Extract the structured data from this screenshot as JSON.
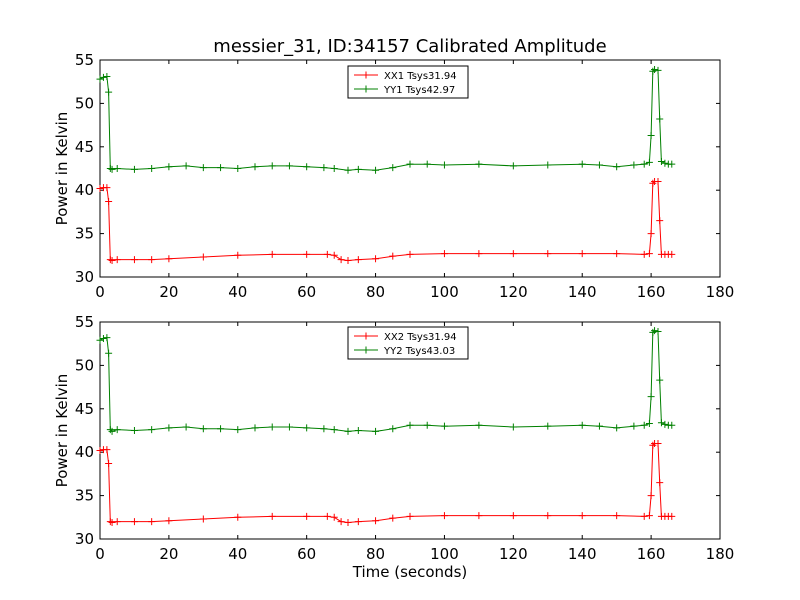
{
  "chart_data": [
    {
      "type": "line",
      "title": "messier_31, ID:34157 Calibrated Amplitude",
      "xlabel": "",
      "ylabel": "Power in Kelvin",
      "xlim": [
        0,
        180
      ],
      "ylim": [
        30,
        55
      ],
      "xticks": [
        "0",
        "20",
        "40",
        "60",
        "80",
        "100",
        "120",
        "140",
        "160",
        "180"
      ],
      "yticks": [
        "30",
        "35",
        "40",
        "45",
        "50",
        "55"
      ],
      "legend_position": "top-center",
      "series": [
        {
          "name": "XX1 Tsys31.94",
          "color": "#ff0000",
          "x": [
            0,
            1,
            2,
            2.5,
            3,
            3.5,
            5,
            10,
            15,
            20,
            30,
            40,
            50,
            60,
            66,
            68,
            70,
            72,
            75,
            80,
            85,
            90,
            100,
            110,
            120,
            130,
            140,
            150,
            158,
            159.5,
            160,
            160.5,
            161,
            162,
            162.5,
            163,
            164,
            165,
            166
          ],
          "y": [
            40.2,
            40.3,
            40.3,
            38.7,
            32.0,
            31.9,
            32.0,
            32.0,
            32.0,
            32.1,
            32.3,
            32.5,
            32.6,
            32.6,
            32.6,
            32.5,
            32.0,
            31.9,
            32.0,
            32.1,
            32.4,
            32.6,
            32.7,
            32.7,
            32.7,
            32.7,
            32.7,
            32.7,
            32.6,
            32.7,
            35.0,
            40.8,
            41.0,
            41.0,
            36.5,
            32.6,
            32.6,
            32.6,
            32.6
          ]
        },
        {
          "name": "YY1 Tsys42.97",
          "color": "#008000",
          "x": [
            0,
            1,
            2,
            2.5,
            3,
            3.5,
            5,
            10,
            15,
            20,
            25,
            30,
            35,
            40,
            45,
            50,
            55,
            60,
            65,
            68,
            72,
            75,
            80,
            85,
            90,
            95,
            100,
            110,
            120,
            130,
            140,
            145,
            150,
            155,
            158,
            159.5,
            160,
            160.5,
            161,
            162,
            162.5,
            163,
            164,
            165,
            166
          ],
          "y": [
            52.8,
            53.0,
            53.1,
            51.3,
            42.5,
            42.4,
            42.5,
            42.4,
            42.5,
            42.7,
            42.8,
            42.6,
            42.6,
            42.5,
            42.7,
            42.8,
            42.8,
            42.7,
            42.6,
            42.5,
            42.3,
            42.4,
            42.3,
            42.6,
            43.0,
            43.0,
            42.9,
            43.0,
            42.8,
            42.9,
            43.0,
            42.9,
            42.7,
            42.9,
            43.0,
            43.2,
            46.3,
            53.7,
            53.9,
            53.8,
            48.2,
            43.3,
            43.1,
            43.0,
            43.0
          ]
        }
      ]
    },
    {
      "type": "line",
      "title": "",
      "xlabel": "Time (seconds)",
      "ylabel": "Power in Kelvin",
      "xlim": [
        0,
        180
      ],
      "ylim": [
        30,
        55
      ],
      "xticks": [
        "0",
        "20",
        "40",
        "60",
        "80",
        "100",
        "120",
        "140",
        "160",
        "180"
      ],
      "yticks": [
        "30",
        "35",
        "40",
        "45",
        "50",
        "55"
      ],
      "legend_position": "top-center",
      "series": [
        {
          "name": "XX2 Tsys31.94",
          "color": "#ff0000",
          "x": [
            0,
            1,
            2,
            2.5,
            3,
            3.5,
            5,
            10,
            15,
            20,
            30,
            40,
            50,
            60,
            66,
            68,
            70,
            72,
            75,
            80,
            85,
            90,
            100,
            110,
            120,
            130,
            140,
            150,
            158,
            159.5,
            160,
            160.5,
            161,
            162,
            162.5,
            163,
            164,
            165,
            166
          ],
          "y": [
            40.2,
            40.3,
            40.3,
            38.7,
            32.0,
            31.9,
            32.0,
            32.0,
            32.0,
            32.1,
            32.3,
            32.5,
            32.6,
            32.6,
            32.6,
            32.5,
            32.0,
            31.9,
            32.0,
            32.1,
            32.4,
            32.6,
            32.7,
            32.7,
            32.7,
            32.7,
            32.7,
            32.7,
            32.6,
            32.7,
            35.0,
            40.8,
            41.0,
            41.0,
            36.5,
            32.6,
            32.6,
            32.6,
            32.6
          ]
        },
        {
          "name": "YY2 Tsys43.03",
          "color": "#008000",
          "x": [
            0,
            1,
            2,
            2.5,
            3,
            3.5,
            5,
            10,
            15,
            20,
            25,
            30,
            35,
            40,
            45,
            50,
            55,
            60,
            65,
            68,
            72,
            75,
            80,
            85,
            90,
            95,
            100,
            110,
            120,
            130,
            140,
            145,
            150,
            155,
            158,
            159.5,
            160,
            160.5,
            161,
            162,
            162.5,
            163,
            164,
            165,
            166
          ],
          "y": [
            52.9,
            53.1,
            53.2,
            51.4,
            42.6,
            42.4,
            42.6,
            42.5,
            42.6,
            42.8,
            42.9,
            42.7,
            42.7,
            42.6,
            42.8,
            42.9,
            42.9,
            42.8,
            42.7,
            42.6,
            42.4,
            42.5,
            42.4,
            42.7,
            43.1,
            43.1,
            43.0,
            43.1,
            42.9,
            43.0,
            43.1,
            43.0,
            42.8,
            43.0,
            43.1,
            43.3,
            46.4,
            53.8,
            54.0,
            53.9,
            48.3,
            43.4,
            43.2,
            43.1,
            43.1
          ]
        }
      ]
    }
  ]
}
